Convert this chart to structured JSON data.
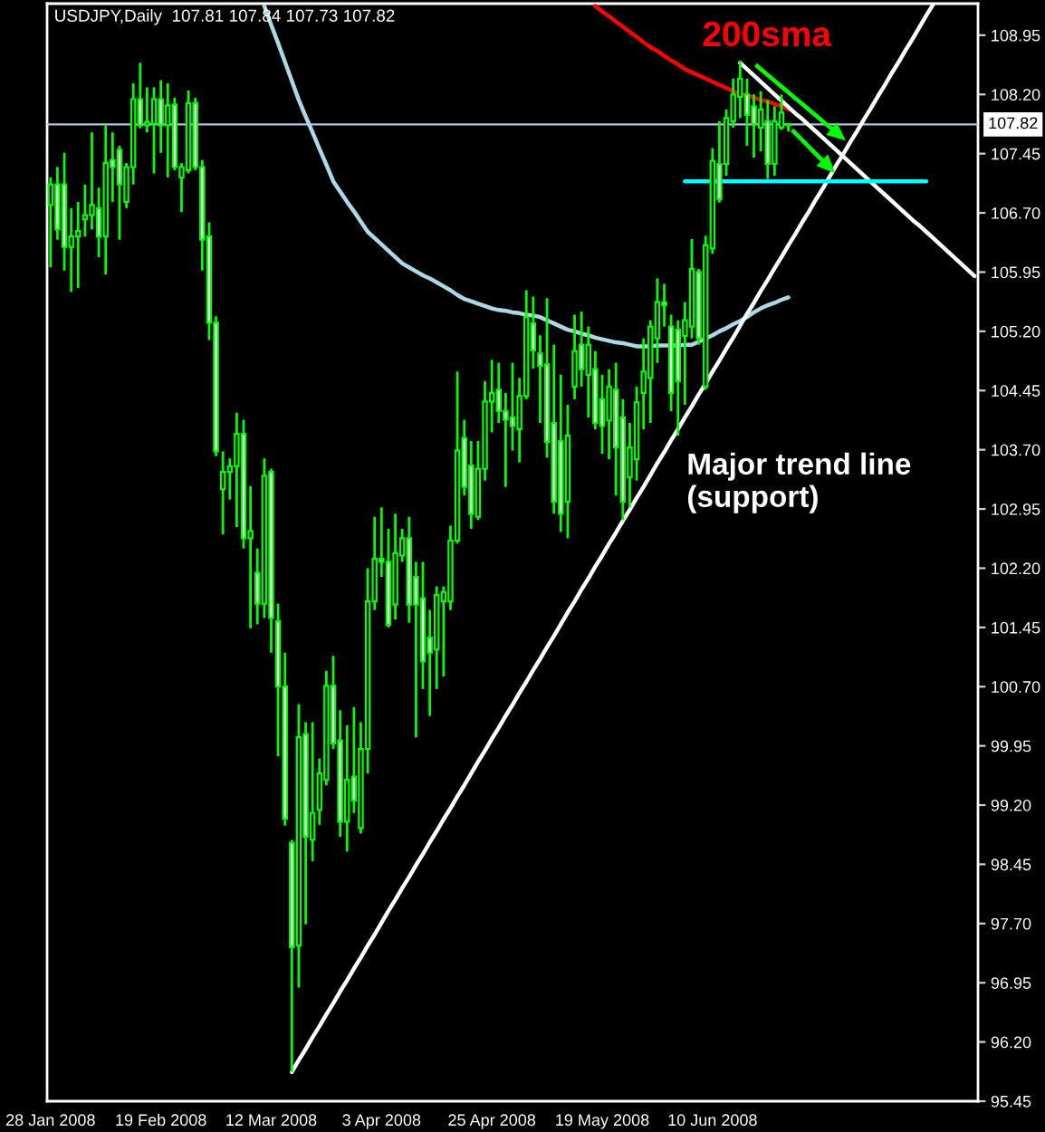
{
  "chart_data": {
    "type": "candlestick",
    "title": "USDJPY,Daily  107.81 107.84 107.73 107.82",
    "categories": [
      "28 Jan 2008",
      null,
      null,
      null,
      null,
      null,
      null,
      null,
      null,
      null,
      null,
      null,
      null,
      null,
      null,
      null,
      "19 Feb 2008",
      null,
      null,
      null,
      null,
      null,
      null,
      null,
      null,
      null,
      null,
      null,
      null,
      null,
      null,
      null,
      "12 Mar 2008",
      null,
      null,
      null,
      null,
      null,
      null,
      null,
      null,
      null,
      null,
      null,
      null,
      null,
      null,
      null,
      "3 Apr 2008",
      null,
      null,
      null,
      null,
      null,
      null,
      null,
      null,
      null,
      null,
      null,
      null,
      null,
      null,
      null,
      "25 Apr 2008",
      null,
      null,
      null,
      null,
      null,
      null,
      null,
      null,
      null,
      null,
      null,
      null,
      null,
      null,
      null,
      "19 May 2008",
      null,
      null,
      null,
      null,
      null,
      null,
      null,
      null,
      null,
      null,
      null,
      null,
      null,
      null,
      null,
      "10 Jun 2008",
      null,
      null,
      null,
      null,
      null,
      null,
      null,
      null,
      null,
      null,
      null,
      null,
      null,
      null,
      null,
      null,
      null,
      null,
      null,
      null,
      null,
      null,
      null,
      null,
      null,
      null,
      null,
      null,
      null,
      null,
      null,
      null,
      null,
      null,
      null,
      null,
      null,
      null
    ],
    "ohlc": [
      [
        106.8,
        107.15,
        106.01,
        107.06
      ],
      [
        107.06,
        107.28,
        106.36,
        106.49
      ],
      [
        107.06,
        107.46,
        105.97,
        106.27
      ],
      [
        106.27,
        106.76,
        105.7,
        106.4
      ],
      [
        106.4,
        106.84,
        105.75,
        106.47
      ],
      [
        106.62,
        107.06,
        106.4,
        106.67
      ],
      [
        106.67,
        107.72,
        106.49,
        106.8
      ],
      [
        106.76,
        107.02,
        106.14,
        106.4
      ],
      [
        106.4,
        107.81,
        105.92,
        107.33
      ],
      [
        107.37,
        107.72,
        106.84,
        107.28
      ],
      [
        107.5,
        107.55,
        106.36,
        107.06
      ],
      [
        106.84,
        107.33,
        106.76,
        107.28
      ],
      [
        107.28,
        108.34,
        107.06,
        108.14
      ],
      [
        108.14,
        108.6,
        107.77,
        107.81
      ],
      [
        107.81,
        108.29,
        107.72,
        107.85
      ],
      [
        107.83,
        108.29,
        107.2,
        108.14
      ],
      [
        108.14,
        108.38,
        107.46,
        107.81
      ],
      [
        107.81,
        108.34,
        107.15,
        108.06
      ],
      [
        108.07,
        108.16,
        107.24,
        107.28
      ],
      [
        107.15,
        107.33,
        106.71,
        107.28
      ],
      [
        107.24,
        108.25,
        107.2,
        108.09
      ],
      [
        108.09,
        108.16,
        107.24,
        107.28
      ],
      [
        107.28,
        107.37,
        105.97,
        106.36
      ],
      [
        106.4,
        106.58,
        105.09,
        105.31
      ],
      [
        105.31,
        105.39,
        103.62,
        103.68
      ],
      [
        103.2,
        103.68,
        102.63,
        103.42
      ],
      [
        103.42,
        103.59,
        103.07,
        103.49
      ],
      [
        103.49,
        104.17,
        102.72,
        103.9
      ],
      [
        103.9,
        104.08,
        102.45,
        102.58
      ],
      [
        102.58,
        103.24,
        101.44,
        102.67
      ],
      [
        102.14,
        102.45,
        101.49,
        101.75
      ],
      [
        101.75,
        103.59,
        101.57,
        103.37
      ],
      [
        103.42,
        103.46,
        101.13,
        101.57
      ],
      [
        101.53,
        101.75,
        99.82,
        100.7
      ],
      [
        100.7,
        101.13,
        98.94,
        99.03
      ],
      [
        98.72,
        98.76,
        95.82,
        97.4
      ],
      [
        97.42,
        100.48,
        96.89,
        100.06
      ],
      [
        100.1,
        100.25,
        97.69,
        98.8
      ],
      [
        98.76,
        100.25,
        98.49,
        99.1
      ],
      [
        99.14,
        99.79,
        98.95,
        99.6
      ],
      [
        99.52,
        100.9,
        99.45,
        100.71
      ],
      [
        100.71,
        101.09,
        99.91,
        99.98
      ],
      [
        100.02,
        100.4,
        98.8,
        98.99
      ],
      [
        98.99,
        100.21,
        98.61,
        99.52
      ],
      [
        99.56,
        100.44,
        99.1,
        99.26
      ],
      [
        98.91,
        100.25,
        98.84,
        99.91
      ],
      [
        99.91,
        102.2,
        99.6,
        101.78
      ],
      [
        101.78,
        102.85,
        101.67,
        102.32
      ],
      [
        102.32,
        102.97,
        102.09,
        102.28
      ],
      [
        102.28,
        102.7,
        101.45,
        101.48
      ],
      [
        101.74,
        102.89,
        101.55,
        102.39
      ],
      [
        102.36,
        102.7,
        102.28,
        102.58
      ],
      [
        102.58,
        102.85,
        101.51,
        101.74
      ],
      [
        102.09,
        102.28,
        100.06,
        101.74
      ],
      [
        101.82,
        102.28,
        100.67,
        101.02
      ],
      [
        101.32,
        101.67,
        100.33,
        101.13
      ],
      [
        101.17,
        101.97,
        100.67,
        101.86
      ],
      [
        101.78,
        101.97,
        100.83,
        101.9
      ],
      [
        101.78,
        102.74,
        101.67,
        102.55
      ],
      [
        102.55,
        104.69,
        102.51,
        103.69
      ],
      [
        103.85,
        104.08,
        103.12,
        103.23
      ],
      [
        103.5,
        103.81,
        102.7,
        102.89
      ],
      [
        102.85,
        103.81,
        102.81,
        103.46
      ],
      [
        103.46,
        104.57,
        103.31,
        104.31
      ],
      [
        104.31,
        104.84,
        103.92,
        104.42
      ],
      [
        104.46,
        104.8,
        104.04,
        104.19
      ],
      [
        104.19,
        104.42,
        103.23,
        104.08
      ],
      [
        104.11,
        104.8,
        103.69,
        104.0
      ],
      [
        103.96,
        104.61,
        103.54,
        104.38
      ],
      [
        104.38,
        105.72,
        104.34,
        105.38
      ],
      [
        105.3,
        105.64,
        104.73,
        104.96
      ],
      [
        104.92,
        105.15,
        104.04,
        104.76
      ],
      [
        104.78,
        105.62,
        103.6,
        103.8
      ],
      [
        104.04,
        105.03,
        102.89,
        103.04
      ],
      [
        103.81,
        104.65,
        102.66,
        102.89
      ],
      [
        103.04,
        104.27,
        102.58,
        103.88
      ],
      [
        104.5,
        105.41,
        104.34,
        104.95
      ],
      [
        105.03,
        105.45,
        104.5,
        104.72
      ],
      [
        104.65,
        105.26,
        104.11,
        105.03
      ],
      [
        104.72,
        104.95,
        103.96,
        104.04
      ],
      [
        104.34,
        104.65,
        103.65,
        104.0
      ],
      [
        104.07,
        104.72,
        103.58,
        104.5
      ],
      [
        104.46,
        104.8,
        103.12,
        103.73
      ],
      [
        104.11,
        104.34,
        102.81,
        103.04
      ],
      [
        103.35,
        104.04,
        102.97,
        103.73
      ],
      [
        103.58,
        104.5,
        103.31,
        104.3
      ],
      [
        104.42,
        105.11,
        103.96,
        104.69
      ],
      [
        104.61,
        105.34,
        104.04,
        105.26
      ],
      [
        105.11,
        105.87,
        104.8,
        105.57
      ],
      [
        105.57,
        105.8,
        105.26,
        105.53
      ],
      [
        105.26,
        105.41,
        104.19,
        104.42
      ],
      [
        105.22,
        105.34,
        103.88,
        104.57
      ],
      [
        105.14,
        105.57,
        104.27,
        105.34
      ],
      [
        105.26,
        106.37,
        105.11,
        105.99
      ],
      [
        105.95,
        105.99,
        105.03,
        105.11
      ],
      [
        104.5,
        106.41,
        104.46,
        106.29
      ],
      [
        106.25,
        107.52,
        106.18,
        107.36
      ],
      [
        107.32,
        107.86,
        106.83,
        106.87
      ],
      [
        107.32,
        108.01,
        107.17,
        107.9
      ],
      [
        107.86,
        108.4,
        107.78,
        108.2
      ],
      [
        108.17,
        108.63,
        107.9,
        108.4
      ],
      [
        108.2,
        108.4,
        107.55,
        107.94
      ],
      [
        108.05,
        108.2,
        107.4,
        107.82
      ],
      [
        107.78,
        108.24,
        107.48,
        108.01
      ],
      [
        107.86,
        108.13,
        107.13,
        107.32
      ],
      [
        107.32,
        108.05,
        107.17,
        107.86
      ],
      [
        107.78,
        108.2,
        107.75,
        107.97
      ],
      [
        107.81,
        107.84,
        107.73,
        107.82
      ],
      null,
      null,
      null,
      null,
      null,
      null,
      null,
      null,
      null,
      null,
      null,
      null,
      null,
      null,
      null,
      null,
      null,
      null,
      null,
      null,
      null,
      null,
      null,
      null,
      null,
      null,
      null
    ],
    "color": "#00ff00",
    "colors": [
      "#000000",
      "#ffffff",
      "#ffffff",
      "#000000",
      "#000000",
      "#000000",
      "#000000",
      "#ffffff",
      "#000000",
      "#ffffff",
      "#ffffff",
      "#000000",
      "#000000",
      "#ffffff",
      "#000000",
      "#000000",
      "#ffffff",
      "#000000",
      "#ffffff",
      "#000000",
      "#000000",
      "#ffffff",
      "#ffffff",
      "#ffffff",
      "#ffffff",
      "#000000",
      "#000000",
      "#000000",
      "#ffffff",
      "#000000",
      "#ffffff",
      "#000000",
      "#ffffff",
      "#ffffff",
      "#ffffff",
      "#ffffff",
      "#000000",
      "#ffffff",
      "#000000",
      "#000000",
      "#000000",
      "#ffffff",
      "#ffffff",
      "#000000",
      "#ffffff",
      "#000000",
      "#000000",
      "#000000",
      "#ffffff",
      "#ffffff",
      "#000000",
      "#000000",
      "#ffffff",
      "#ffffff",
      "#ffffff",
      "#ffffff",
      "#000000",
      "#000000",
      "#000000",
      "#000000",
      "#ffffff",
      "#ffffff",
      "#000000",
      "#000000",
      "#000000",
      "#ffffff",
      "#ffffff",
      "#ffffff",
      "#000000",
      "#000000",
      "#ffffff",
      "#ffffff",
      "#ffffff",
      "#ffffff",
      "#ffffff",
      "#000000",
      "#000000",
      "#ffffff",
      "#000000",
      "#ffffff",
      "#ffffff",
      "#000000",
      "#ffffff",
      "#ffffff",
      "#000000",
      "#000000",
      "#000000",
      "#000000",
      "#000000",
      "#ffffff",
      "#ffffff",
      "#ffffff",
      "#000000",
      "#000000",
      "#ffffff",
      "#000000",
      "#000000",
      "#ffffff",
      "#000000",
      "#000000",
      "#000000",
      "#ffffff",
      "#ffffff",
      "#000000",
      "#ffffff",
      "#000000",
      "#000000",
      "#000000",
      null,
      null,
      null,
      null,
      null,
      null,
      null,
      null,
      null,
      null,
      null,
      null,
      null,
      null,
      null,
      null,
      null,
      null,
      null,
      null,
      null,
      null,
      null,
      null,
      null,
      null,
      null
    ],
    "series": [
      {
        "type": "line",
        "name": "200sma",
        "color": "#ff0000",
        "values": [
          null,
          null,
          null,
          null,
          null,
          null,
          null,
          null,
          null,
          null,
          null,
          null,
          null,
          null,
          null,
          null,
          null,
          null,
          null,
          null,
          null,
          null,
          null,
          null,
          null,
          null,
          null,
          null,
          null,
          null,
          null,
          null,
          null,
          null,
          null,
          null,
          null,
          null,
          null,
          null,
          null,
          null,
          null,
          null,
          null,
          null,
          null,
          null,
          null,
          null,
          null,
          null,
          null,
          null,
          null,
          null,
          null,
          null,
          null,
          null,
          null,
          null,
          null,
          null,
          null,
          null,
          null,
          null,
          null,
          null,
          null,
          null,
          null,
          null,
          null,
          null,
          null,
          null,
          null,
          109.32,
          109.25,
          109.19,
          109.12,
          109.06,
          108.99,
          108.93,
          108.86,
          108.8,
          108.75,
          108.69,
          108.63,
          108.58,
          108.52,
          108.48,
          108.44,
          108.4,
          108.36,
          108.32,
          108.28,
          108.24,
          108.21,
          108.19,
          108.16,
          108.13,
          108.11,
          108.08,
          108.05,
          108.01,
          null,
          null,
          null,
          null,
          null,
          null,
          null,
          null,
          null,
          null,
          null,
          null,
          null,
          null,
          null,
          null,
          null,
          null,
          null,
          null,
          null,
          null,
          null,
          null,
          null,
          null,
          null
        ]
      },
      {
        "type": "line",
        "color": "#add8e6",
        "values": [
          null,
          null,
          null,
          null,
          null,
          null,
          null,
          null,
          null,
          null,
          null,
          null,
          null,
          null,
          null,
          null,
          null,
          null,
          null,
          null,
          null,
          null,
          null,
          null,
          null,
          null,
          null,
          null,
          null,
          null,
          null,
          109.32,
          109.08,
          108.85,
          108.61,
          108.37,
          108.13,
          107.92,
          107.72,
          107.51,
          107.31,
          107.1,
          106.97,
          106.84,
          106.72,
          106.59,
          106.46,
          106.38,
          106.3,
          106.22,
          106.14,
          106.06,
          106.01,
          105.96,
          105.91,
          105.87,
          105.82,
          105.77,
          105.72,
          105.66,
          105.61,
          105.58,
          105.55,
          105.52,
          105.49,
          105.47,
          105.46,
          105.44,
          105.43,
          105.41,
          105.4,
          105.38,
          105.34,
          105.3,
          105.26,
          105.22,
          105.2,
          105.17,
          105.15,
          105.12,
          105.1,
          105.08,
          105.06,
          105.05,
          105.03,
          105.01,
          105.01,
          105.01,
          105.02,
          105.02,
          105.02,
          105.02,
          105.03,
          105.03,
          105.07,
          105.11,
          105.15,
          105.2,
          105.24,
          105.29,
          105.33,
          105.38,
          105.44,
          105.49,
          105.53,
          105.56,
          105.6,
          105.63,
          null,
          null,
          null,
          null,
          null,
          null,
          null,
          null,
          null,
          null,
          null,
          null,
          null,
          null,
          null,
          null,
          null,
          null,
          null,
          null,
          null,
          null,
          null,
          null,
          null,
          null,
          null
        ]
      },
      {
        "type": "line",
        "name": "Major trend line\n(support)",
        "color": "#ffffff",
        "values": [
          null,
          null,
          null,
          null,
          null,
          null,
          null,
          null,
          null,
          null,
          null,
          null,
          null,
          null,
          null,
          null,
          null,
          null,
          null,
          null,
          null,
          null,
          null,
          null,
          null,
          null,
          null,
          null,
          null,
          null,
          null,
          null,
          null,
          null,
          null,
          95.82,
          95.97,
          96.11,
          96.26,
          96.4,
          96.55,
          96.69,
          96.84,
          96.98,
          97.13,
          97.27,
          97.42,
          97.56,
          97.71,
          97.86,
          98.0,
          98.15,
          98.29,
          98.44,
          98.58,
          98.73,
          98.87,
          99.02,
          99.16,
          99.31,
          99.45,
          99.6,
          99.75,
          99.89,
          100.04,
          100.18,
          100.33,
          100.47,
          100.62,
          100.76,
          100.91,
          101.05,
          101.2,
          101.34,
          101.49,
          101.64,
          101.78,
          101.93,
          102.07,
          102.22,
          102.36,
          102.51,
          102.65,
          102.8,
          102.94,
          103.09,
          103.23,
          103.38,
          103.53,
          103.67,
          103.82,
          103.96,
          104.11,
          104.25,
          104.4,
          104.54,
          104.69,
          104.83,
          104.98,
          105.12,
          105.27,
          105.42,
          105.56,
          105.71,
          105.85,
          106.0,
          106.14,
          106.29,
          106.43,
          106.58,
          106.72,
          106.87,
          107.01,
          107.16,
          107.31,
          107.45,
          107.6,
          107.74,
          107.89,
          108.03,
          108.18,
          108.32,
          108.47,
          108.61,
          108.76,
          108.9,
          109.05,
          109.2,
          109.34,
          null,
          null,
          null,
          null,
          null,
          null
        ]
      },
      {
        "type": "line",
        "color": "#ffffff",
        "values": [
          null,
          null,
          null,
          null,
          null,
          null,
          null,
          null,
          null,
          null,
          null,
          null,
          null,
          null,
          null,
          null,
          null,
          null,
          null,
          null,
          null,
          null,
          null,
          null,
          null,
          null,
          null,
          null,
          null,
          null,
          null,
          null,
          null,
          null,
          null,
          null,
          null,
          null,
          null,
          null,
          null,
          null,
          null,
          null,
          null,
          null,
          null,
          null,
          null,
          null,
          null,
          null,
          null,
          null,
          null,
          null,
          null,
          null,
          null,
          null,
          null,
          null,
          null,
          null,
          null,
          null,
          null,
          null,
          null,
          null,
          null,
          null,
          null,
          null,
          null,
          null,
          null,
          null,
          null,
          null,
          null,
          null,
          null,
          null,
          null,
          null,
          null,
          null,
          null,
          null,
          null,
          null,
          null,
          null,
          null,
          null,
          null,
          null,
          null,
          null,
          108.6,
          108.52,
          108.44,
          108.36,
          108.28,
          108.2,
          108.12,
          108.04,
          107.96,
          107.89,
          107.81,
          107.73,
          107.65,
          107.57,
          107.49,
          107.41,
          107.33,
          107.25,
          107.17,
          107.09,
          107.01,
          106.93,
          106.85,
          106.77,
          106.69,
          106.61,
          106.54,
          106.46,
          106.38,
          106.3,
          106.22,
          106.14,
          106.06,
          105.98,
          105.9
        ]
      },
      {
        "type": "line",
        "color": "#00ffff",
        "values": [
          null,
          null,
          null,
          null,
          null,
          null,
          null,
          null,
          null,
          null,
          null,
          null,
          null,
          null,
          null,
          null,
          null,
          null,
          null,
          null,
          null,
          null,
          null,
          null,
          null,
          null,
          null,
          null,
          null,
          null,
          null,
          null,
          null,
          null,
          null,
          null,
          null,
          null,
          null,
          null,
          null,
          null,
          null,
          null,
          null,
          null,
          null,
          null,
          null,
          null,
          null,
          null,
          null,
          null,
          null,
          null,
          null,
          null,
          null,
          null,
          null,
          null,
          null,
          null,
          null,
          null,
          null,
          null,
          null,
          null,
          null,
          null,
          null,
          null,
          null,
          null,
          null,
          null,
          null,
          null,
          null,
          null,
          null,
          null,
          null,
          null,
          null,
          null,
          null,
          null,
          null,
          null,
          107.1,
          107.1,
          107.1,
          107.1,
          107.1,
          107.1,
          107.1,
          107.1,
          107.1,
          107.1,
          107.1,
          107.1,
          107.1,
          107.1,
          107.1,
          107.1,
          107.1,
          107.1,
          107.1,
          107.1,
          107.1,
          107.1,
          107.1,
          107.1,
          107.1,
          107.1,
          107.1,
          107.1,
          107.1,
          107.1,
          107.1,
          107.1,
          107.1,
          107.1,
          107.1,
          107.1,
          null,
          null,
          null,
          null,
          null,
          null,
          null
        ]
      }
    ],
    "ref_lines": [
      {
        "axis": "y",
        "value": 107.82,
        "label": "107.82",
        "color": "#b0c4de"
      }
    ],
    "ylim": [
      95.45,
      109.35
    ],
    "yticks": [
      95.45,
      {
        "value": 96.2,
        "label": "96.20"
      },
      96.95,
      {
        "value": 97.7,
        "label": "97.70"
      },
      98.45,
      {
        "value": 99.2,
        "label": "99.20"
      },
      99.95,
      {
        "value": 100.7,
        "label": "100.70"
      },
      101.45,
      {
        "value": 102.2,
        "label": "102.20"
      },
      102.95,
      {
        "value": 103.7,
        "label": "103.70"
      },
      104.45,
      {
        "value": 105.2,
        "label": "105.20"
      },
      105.95,
      {
        "value": 106.7,
        "label": "106.70"
      },
      107.45,
      {
        "value": 108.2,
        "label": "108.20"
      },
      108.95
    ]
  }
}
